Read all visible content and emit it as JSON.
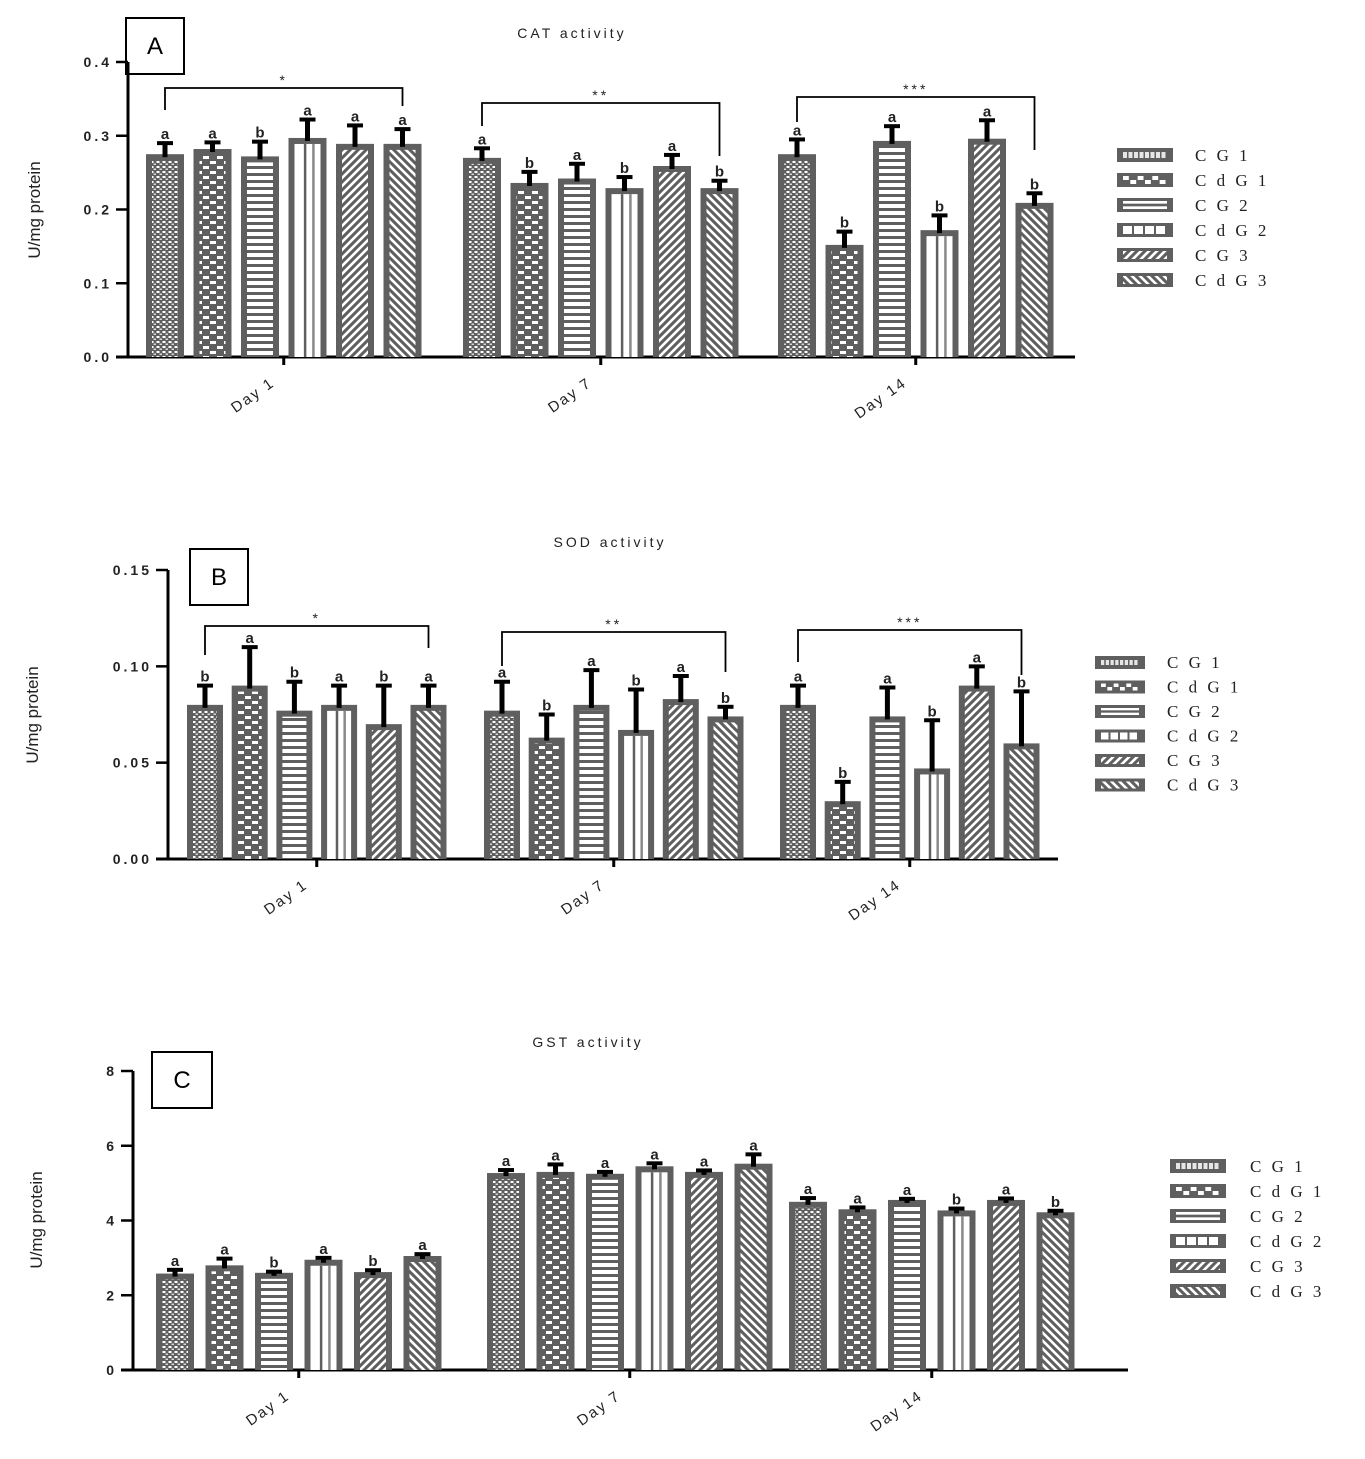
{
  "groups": [
    "CG 1",
    "CdG 1",
    "CG 2",
    "CdG 2",
    "CG 3",
    "CdG 3"
  ],
  "legend_labels": [
    "C G 1",
    "C d G 1",
    "C G 2",
    "C d G 2",
    "C G 3",
    "C d G 3"
  ],
  "patterns": [
    "dots",
    "checker",
    "hlines",
    "vlines",
    "diag-up",
    "diag-down"
  ],
  "colors": {
    "bar_fill": "#5f5f5f",
    "pattern_light": "#ffffff",
    "error_bar": "#000000",
    "axis": "#000000"
  },
  "chart_data": [
    {
      "panel": "A",
      "type": "bar",
      "title": "CAT activity",
      "xlabel": "",
      "ylabel": "U/mg protein",
      "ylim": [
        0,
        0.4
      ],
      "yticks": [
        "0.0",
        "0.1",
        "0.2",
        "0.3",
        "0.4"
      ],
      "ytick_values": [
        0,
        0.1,
        0.2,
        0.3,
        0.4
      ],
      "categories": [
        "Day 1",
        "Day 7",
        "Day 14"
      ],
      "legend_position": "right",
      "grid": false,
      "series": [
        {
          "name": "CG 1",
          "values": [
            0.275,
            0.27,
            0.275
          ],
          "errors": [
            0.015,
            0.013,
            0.02
          ],
          "letters": [
            "a",
            "a",
            "a"
          ]
        },
        {
          "name": "CdG 1",
          "values": [
            0.282,
            0.236,
            0.152
          ],
          "errors": [
            0.009,
            0.015,
            0.018
          ],
          "letters": [
            "a",
            "b",
            "b"
          ]
        },
        {
          "name": "CG 2",
          "values": [
            0.272,
            0.242,
            0.293
          ],
          "errors": [
            0.02,
            0.02,
            0.02
          ],
          "letters": [
            "b",
            "a",
            "a"
          ]
        },
        {
          "name": "CdG 2",
          "values": [
            0.297,
            0.229,
            0.172
          ],
          "errors": [
            0.025,
            0.015,
            0.02
          ],
          "letters": [
            "a",
            "b",
            "b"
          ]
        },
        {
          "name": "CG 3",
          "values": [
            0.289,
            0.259,
            0.296
          ],
          "errors": [
            0.025,
            0.015,
            0.025
          ],
          "letters": [
            "a",
            "a",
            "a"
          ]
        },
        {
          "name": "CdG 3",
          "values": [
            0.289,
            0.229,
            0.209
          ],
          "errors": [
            0.02,
            0.01,
            0.013
          ],
          "letters": [
            "a",
            "b",
            "b"
          ]
        }
      ],
      "significance": [
        "*",
        "**",
        "***"
      ]
    },
    {
      "panel": "B",
      "type": "bar",
      "title": "SOD activity",
      "xlabel": "",
      "ylabel": "U/mg protein",
      "ylim": [
        0,
        0.15
      ],
      "yticks": [
        "0.00",
        "0.05",
        "0.10",
        "0.15"
      ],
      "ytick_values": [
        0,
        0.05,
        0.1,
        0.15
      ],
      "categories": [
        "Day 1",
        "Day 7",
        "Day 14"
      ],
      "legend_position": "right",
      "grid": false,
      "series": [
        {
          "name": "CG 1",
          "values": [
            0.08,
            0.077,
            0.08
          ],
          "errors": [
            0.01,
            0.015,
            0.01
          ],
          "letters": [
            "b",
            "a",
            "a"
          ]
        },
        {
          "name": "CdG 1",
          "values": [
            0.09,
            0.063,
            0.03
          ],
          "errors": [
            0.02,
            0.012,
            0.01
          ],
          "letters": [
            "a",
            "b",
            "b"
          ]
        },
        {
          "name": "CG 2",
          "values": [
            0.077,
            0.08,
            0.074
          ],
          "errors": [
            0.015,
            0.018,
            0.015
          ],
          "letters": [
            "b",
            "a",
            "a"
          ]
        },
        {
          "name": "CdG 2",
          "values": [
            0.08,
            0.067,
            0.047
          ],
          "errors": [
            0.01,
            0.021,
            0.025
          ],
          "letters": [
            "a",
            "b",
            "b"
          ]
        },
        {
          "name": "CG 3",
          "values": [
            0.07,
            0.083,
            0.09
          ],
          "errors": [
            0.02,
            0.012,
            0.01
          ],
          "letters": [
            "b",
            "a",
            "a"
          ]
        },
        {
          "name": "CdG 3",
          "values": [
            0.08,
            0.074,
            0.06
          ],
          "errors": [
            0.01,
            0.005,
            0.027
          ],
          "letters": [
            "a",
            "b",
            "b"
          ]
        }
      ],
      "significance": [
        "*",
        "**",
        "***"
      ]
    },
    {
      "panel": "C",
      "type": "bar",
      "title": "GST activity",
      "xlabel": "",
      "ylabel": "U/mg protein",
      "ylim": [
        0,
        8
      ],
      "yticks": [
        "0",
        "2",
        "4",
        "6",
        "8"
      ],
      "ytick_values": [
        0,
        2,
        4,
        6,
        8
      ],
      "categories": [
        "Day 1",
        "Day 7",
        "Day 14"
      ],
      "legend_position": "right",
      "grid": false,
      "series": [
        {
          "name": "CG 1",
          "values": [
            2.58,
            5.27,
            4.5
          ],
          "errors": [
            0.1,
            0.08,
            0.1
          ],
          "letters": [
            "a",
            "a",
            "a"
          ]
        },
        {
          "name": "CdG 1",
          "values": [
            2.8,
            5.3,
            4.3
          ],
          "errors": [
            0.18,
            0.2,
            0.05
          ],
          "letters": [
            "a",
            "a",
            "a"
          ]
        },
        {
          "name": "CG 2",
          "values": [
            2.6,
            5.25,
            4.55
          ],
          "errors": [
            0.03,
            0.05,
            0.03
          ],
          "letters": [
            "b",
            "a",
            "a"
          ]
        },
        {
          "name": "CdG 2",
          "values": [
            2.95,
            5.45,
            4.27
          ],
          "errors": [
            0.05,
            0.08,
            0.05
          ],
          "letters": [
            "a",
            "a",
            "b"
          ]
        },
        {
          "name": "CG 3",
          "values": [
            2.62,
            5.3,
            4.55
          ],
          "errors": [
            0.05,
            0.04,
            0.04
          ],
          "letters": [
            "b",
            "a",
            "a"
          ]
        },
        {
          "name": "CdG 3",
          "values": [
            3.05,
            5.52,
            4.22
          ],
          "errors": [
            0.05,
            0.25,
            0.04
          ],
          "letters": [
            "a",
            "a",
            "b"
          ]
        }
      ],
      "significance": []
    }
  ]
}
